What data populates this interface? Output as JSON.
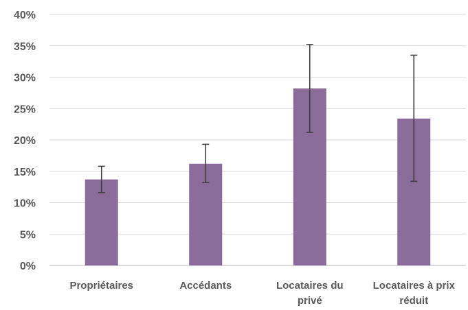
{
  "chart_data": {
    "type": "bar",
    "categories": [
      [
        "Propriétaires"
      ],
      [
        "Accédants"
      ],
      [
        "Locataires du",
        "privé"
      ],
      [
        "Locataires à prix",
        "réduit"
      ]
    ],
    "values": [
      13.7,
      16.2,
      28.2,
      23.4
    ],
    "error_low": [
      11.6,
      13.2,
      21.2,
      13.4
    ],
    "error_high": [
      15.8,
      19.3,
      35.2,
      33.5
    ],
    "yticks": [
      "0%",
      "5%",
      "10%",
      "15%",
      "20%",
      "25%",
      "30%",
      "35%",
      "40%"
    ],
    "ylim": [
      0,
      40
    ],
    "grid": true,
    "bar_color": "#8b6b9a",
    "error_bar_color": "#3f3f3f",
    "title": "",
    "xlabel": "",
    "ylabel": ""
  }
}
